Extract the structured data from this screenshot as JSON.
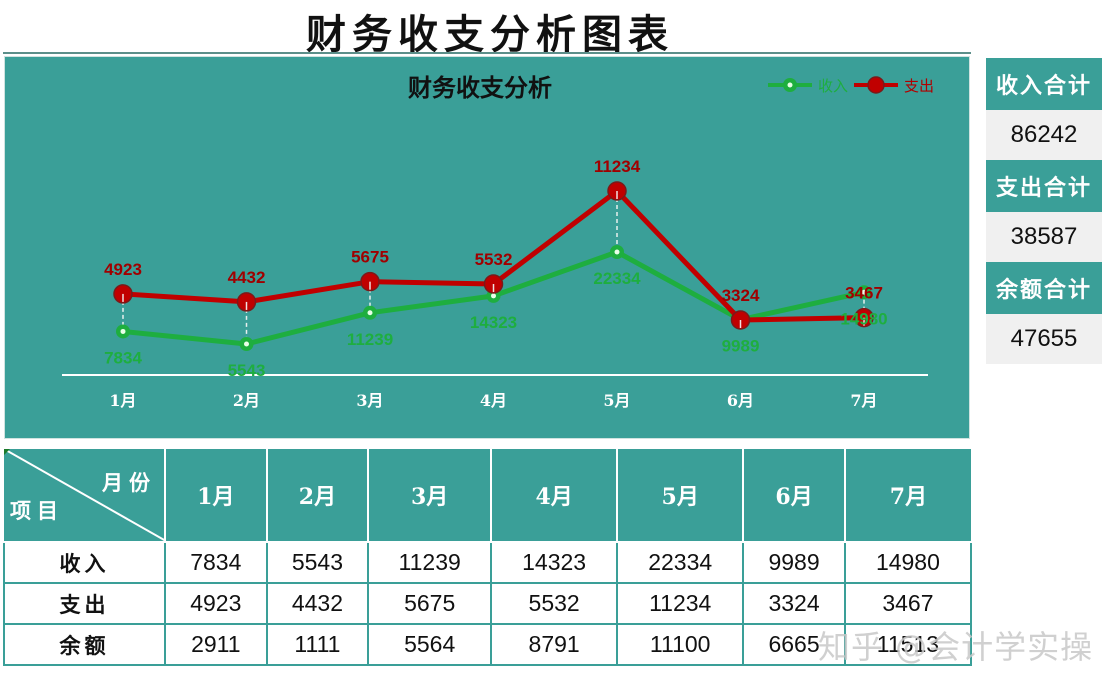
{
  "page": {
    "title": "财务收支分析图表"
  },
  "chart": {
    "title": "财务收支分析",
    "legend": [
      {
        "label": "收入",
        "color": "#1eae3f"
      },
      {
        "label": "支出",
        "color": "#c00000"
      }
    ],
    "months": [
      "1月",
      "2月",
      "3月",
      "4月",
      "5月",
      "6月",
      "7月"
    ],
    "background": "#3a9f98"
  },
  "chart_data": {
    "type": "line",
    "title": "财务收支分析",
    "categories": [
      "1月",
      "2月",
      "3月",
      "4月",
      "5月",
      "6月",
      "7月"
    ],
    "series": [
      {
        "name": "收入",
        "color": "#1eae3f",
        "values": [
          7834,
          5543,
          11239,
          14323,
          22334,
          9989,
          14980
        ]
      },
      {
        "name": "支出",
        "color": "#c00000",
        "values": [
          4923,
          4432,
          5675,
          5532,
          11234,
          3324,
          3467
        ]
      }
    ],
    "xlabel": "",
    "ylabel": "",
    "grid": false,
    "legend_position": "top-right",
    "data_labels": true
  },
  "kpis": [
    {
      "label": "收入合计",
      "value": "86242"
    },
    {
      "label": "支出合计",
      "value": "38587"
    },
    {
      "label": "余额合计",
      "value": "47655"
    }
  ],
  "table": {
    "corner_top": "月份",
    "corner_bottom": "项目",
    "columns": [
      "1月",
      "2月",
      "3月",
      "4月",
      "5月",
      "6月",
      "7月"
    ],
    "rows": [
      {
        "label": "收入",
        "values": [
          "7834",
          "5543",
          "11239",
          "14323",
          "22334",
          "9989",
          "14980"
        ]
      },
      {
        "label": "支出",
        "values": [
          "4923",
          "4432",
          "5675",
          "5532",
          "11234",
          "3324",
          "3467"
        ]
      },
      {
        "label": "余额",
        "values": [
          "2911",
          "1111",
          "5564",
          "8791",
          "11100",
          "6665",
          "11513"
        ]
      }
    ]
  },
  "watermark": "知乎 @会计学实操"
}
